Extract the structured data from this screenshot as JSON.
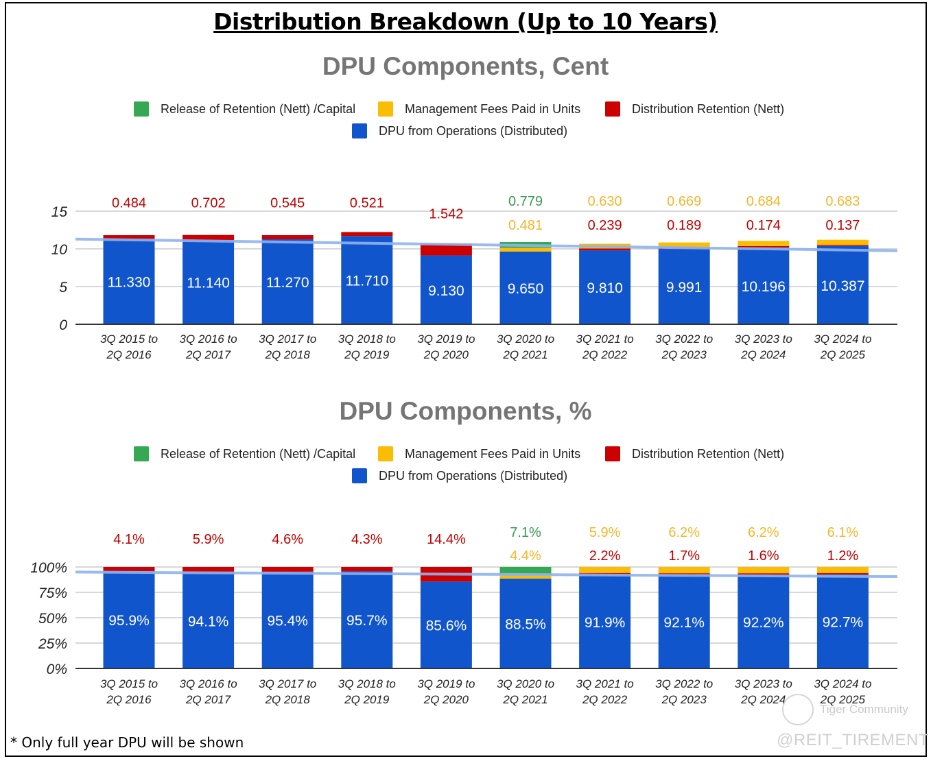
{
  "main_title": "Distribution Breakdown (Up to 10 Years)",
  "footnote": "* Only full year DPU will be shown",
  "watermark": {
    "community": "Tiger Community",
    "handle": "@REIT_TIREMENT"
  },
  "colors": {
    "release": "#34a853",
    "fees": "#fbbc04",
    "retention": "#cc0000",
    "dpu": "#1155cc",
    "trendline": "#8fb3ee",
    "axis_text": "#222222",
    "title_gray": "#757575"
  },
  "legend": [
    {
      "key": "release",
      "label": "Release of Retention (Nett) /Capital"
    },
    {
      "key": "fees",
      "label": "Management Fees Paid in Units"
    },
    {
      "key": "retention",
      "label": "Distribution Retention (Nett)"
    },
    {
      "key": "dpu",
      "label": "DPU from Operations (Distributed)"
    }
  ],
  "chart_data": [
    {
      "type": "bar",
      "stacked": true,
      "title": "DPU Components, Cent",
      "xlabel": "",
      "ylabel": "",
      "ylim": [
        0,
        15
      ],
      "yticks": [
        "0",
        "5",
        "10",
        "15"
      ],
      "grid": true,
      "legend_position": "top",
      "categories": [
        [
          "3Q 2015 to",
          "2Q 2016"
        ],
        [
          "3Q 2016 to",
          "2Q 2017"
        ],
        [
          "3Q 2017 to",
          "2Q 2018"
        ],
        [
          "3Q 2018 to",
          "2Q 2019"
        ],
        [
          "3Q 2019 to",
          "2Q 2020"
        ],
        [
          "3Q 2020 to",
          "2Q 2021"
        ],
        [
          "3Q 2021 to",
          "2Q 2022"
        ],
        [
          "3Q 2022 to",
          "2Q 2023"
        ],
        [
          "3Q 2023 to",
          "2Q 2024"
        ],
        [
          "3Q 2024 to",
          "2Q 2025"
        ]
      ],
      "series": [
        {
          "name": "DPU from Operations (Distributed)",
          "key": "dpu",
          "values": [
            11.33,
            11.14,
            11.27,
            11.71,
            9.13,
            9.65,
            9.81,
            9.991,
            10.196,
            10.387
          ],
          "labels": [
            "11.330",
            "11.140",
            "11.270",
            "11.710",
            "9.130",
            "9.650",
            "9.810",
            "9.991",
            "10.196",
            "10.387"
          ]
        },
        {
          "name": "Distribution Retention (Nett)",
          "key": "retention",
          "values": [
            0.484,
            0.702,
            0.545,
            0.521,
            1.542,
            0,
            0.239,
            0.189,
            0.174,
            0.137
          ],
          "labels": [
            "0.484",
            "0.702",
            "0.545",
            "0.521",
            "1.542",
            "",
            "0.239",
            "0.189",
            "0.174",
            "0.137"
          ]
        },
        {
          "name": "Management Fees Paid in Units",
          "key": "fees",
          "values": [
            0,
            0,
            0,
            0,
            0,
            0.481,
            0.63,
            0.669,
            0.684,
            0.683
          ],
          "labels": [
            "",
            "",
            "",
            "",
            "",
            "0.481",
            "0.630",
            "0.669",
            "0.684",
            "0.683"
          ]
        },
        {
          "name": "Release of Retention (Nett) /Capital",
          "key": "release",
          "values": [
            0,
            0,
            0,
            0,
            0,
            0.779,
            0,
            0,
            0,
            0
          ],
          "labels": [
            "",
            "",
            "",
            "",
            "",
            "0.779",
            "",
            "",
            "",
            ""
          ]
        }
      ],
      "trendline": {
        "start": 11.3,
        "end": 9.75
      }
    },
    {
      "type": "bar",
      "stacked": true,
      "title": "DPU Components, %",
      "xlabel": "",
      "ylabel": "",
      "ylim": [
        0,
        100
      ],
      "yticks": [
        "0%",
        "25%",
        "50%",
        "75%",
        "100%"
      ],
      "grid": true,
      "legend_position": "top",
      "categories": [
        [
          "3Q 2015 to",
          "2Q 2016"
        ],
        [
          "3Q 2016 to",
          "2Q 2017"
        ],
        [
          "3Q 2017 to",
          "2Q 2018"
        ],
        [
          "3Q 2018 to",
          "2Q 2019"
        ],
        [
          "3Q 2019 to",
          "2Q 2020"
        ],
        [
          "3Q 2020 to",
          "2Q 2021"
        ],
        [
          "3Q 2021 to",
          "2Q 2022"
        ],
        [
          "3Q 2022 to",
          "2Q 2023"
        ],
        [
          "3Q 2023 to",
          "2Q 2024"
        ],
        [
          "3Q 2024 to",
          "2Q 2025"
        ]
      ],
      "series": [
        {
          "name": "DPU from Operations (Distributed)",
          "key": "dpu",
          "values": [
            95.9,
            94.1,
            95.4,
            95.7,
            85.6,
            88.5,
            91.9,
            92.1,
            92.2,
            92.7
          ],
          "labels": [
            "95.9%",
            "94.1%",
            "95.4%",
            "95.7%",
            "85.6%",
            "88.5%",
            "91.9%",
            "92.1%",
            "92.2%",
            "92.7%"
          ]
        },
        {
          "name": "Distribution Retention (Nett)",
          "key": "retention",
          "values": [
            4.1,
            5.9,
            4.6,
            4.3,
            14.4,
            0,
            2.2,
            1.7,
            1.6,
            1.2
          ],
          "labels": [
            "4.1%",
            "5.9%",
            "4.6%",
            "4.3%",
            "14.4%",
            "",
            "2.2%",
            "1.7%",
            "1.6%",
            "1.2%"
          ]
        },
        {
          "name": "Management Fees Paid in Units",
          "key": "fees",
          "values": [
            0,
            0,
            0,
            0,
            0,
            4.4,
            5.9,
            6.2,
            6.2,
            6.1
          ],
          "labels": [
            "",
            "",
            "",
            "",
            "",
            "4.4%",
            "5.9%",
            "6.2%",
            "6.2%",
            "6.1%"
          ]
        },
        {
          "name": "Release of Retention (Nett) /Capital",
          "key": "release",
          "values": [
            0,
            0,
            0,
            0,
            0,
            7.1,
            0,
            0,
            0,
            0
          ],
          "labels": [
            "",
            "",
            "",
            "",
            "",
            "7.1%",
            "",
            "",
            "",
            ""
          ]
        }
      ],
      "trendline": {
        "start": 95.0,
        "end": 90.5
      }
    }
  ]
}
